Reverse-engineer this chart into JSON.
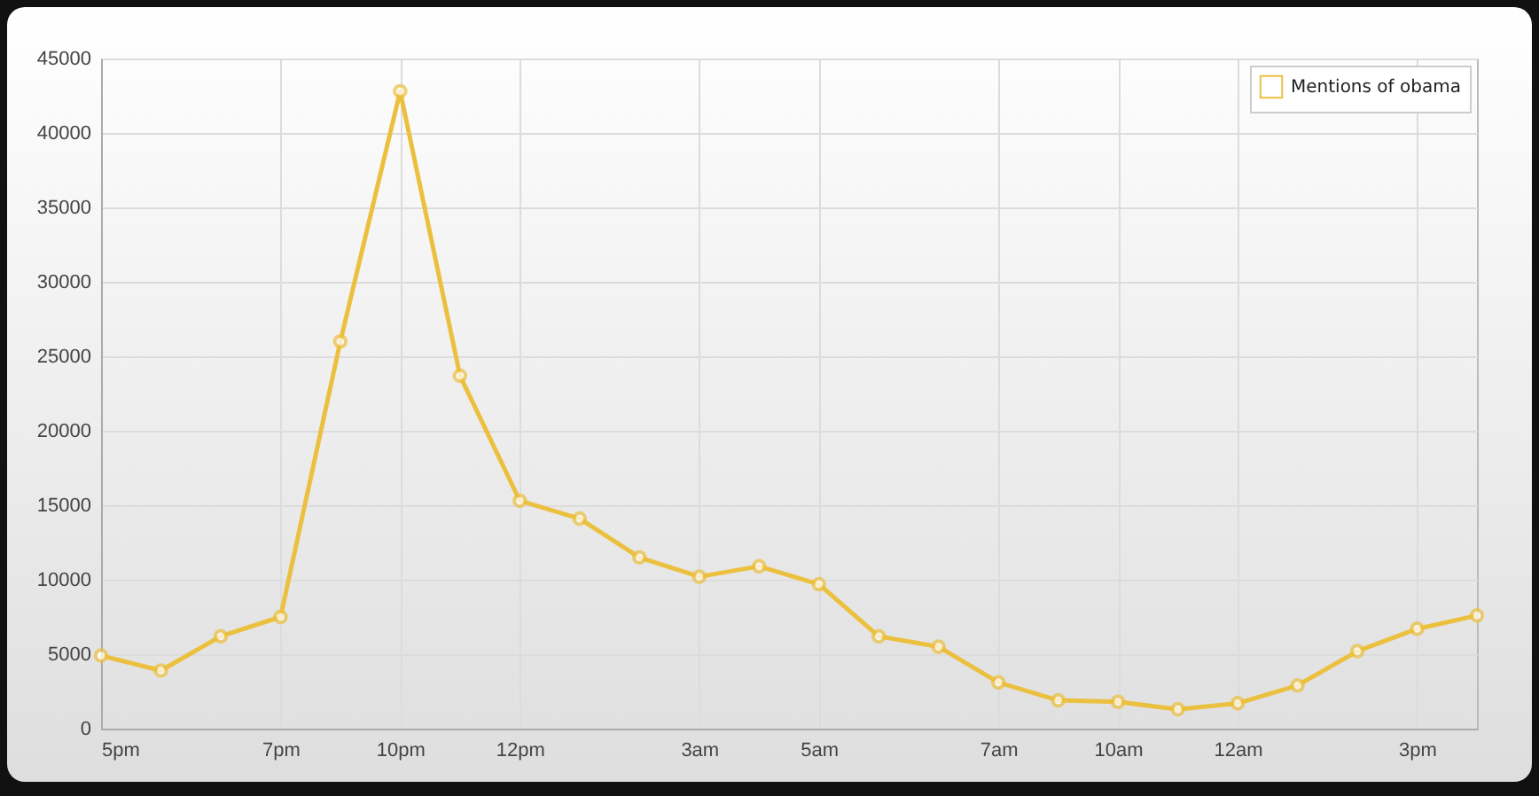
{
  "chart_data": {
    "type": "line",
    "categories": [
      "5pm",
      null,
      null,
      "7pm",
      null,
      "10pm",
      null,
      "12pm",
      null,
      null,
      "3am",
      null,
      "5am",
      null,
      null,
      "7am",
      null,
      "10am",
      null,
      "12am",
      null,
      null,
      "3pm",
      null
    ],
    "series": [
      {
        "name": "Mentions of obama",
        "color": "#ecc03f",
        "values": [
          4900,
          3900,
          6200,
          7500,
          26000,
          42800,
          23700,
          15300,
          14100,
          11500,
          10200,
          10900,
          9700,
          6200,
          5500,
          3100,
          1900,
          1800,
          1300,
          1700,
          2900,
          5200,
          6700,
          7600
        ]
      }
    ],
    "ylim": [
      0,
      45000
    ],
    "yticks": [
      0,
      5000,
      10000,
      15000,
      20000,
      25000,
      30000,
      35000,
      40000,
      45000
    ],
    "grid": true,
    "legend": "top right",
    "marker": "circle",
    "line_style": "solid"
  }
}
